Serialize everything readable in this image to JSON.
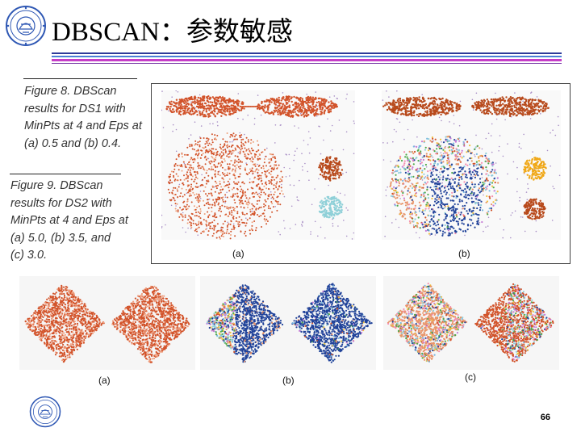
{
  "slide": {
    "title": "DBSCAN：参数敏感",
    "page_number": "66",
    "rule_colors": [
      "#2e3a9a",
      "#4b7fd6",
      "#c63ec8",
      "#7c3fa8"
    ]
  },
  "figure8": {
    "caption_lines": [
      "Figure 8. DBScan",
      "results for DS1 with",
      "MinPts at 4 and Eps at",
      "(a) 0.5 and (b) 0.4."
    ],
    "panel_labels": [
      "(a)",
      "(b)"
    ]
  },
  "figure9": {
    "caption_lines": [
      "Figure 9. DBScan",
      "results for DS2 with",
      "MinPts at 4 and Eps at",
      "(a) 5.0, (b) 3.5, and",
      "(c) 3.0."
    ],
    "panel_labels": [
      "(a)",
      "(b)",
      "(c)"
    ]
  },
  "cluster_colors": {
    "orange_red": "#d2532a",
    "peach": "#e8956a",
    "navy": "#21439a",
    "brown": "#b84a1c",
    "gold": "#f0a818",
    "teal": "#8fd0d8",
    "noise": "#a98fc6"
  },
  "icons": [
    "university-seal-icon"
  ]
}
